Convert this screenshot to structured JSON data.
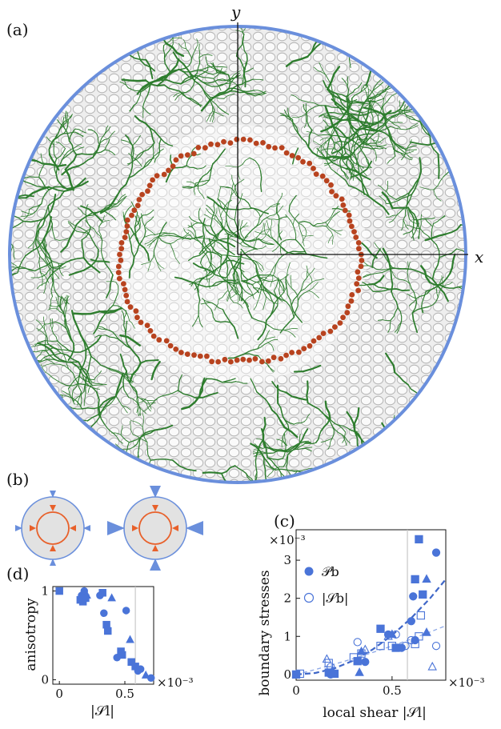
{
  "panel_labels": {
    "a": "(a)",
    "b": "(b)",
    "c": "(c)",
    "d": "(d)"
  },
  "panel_a": {
    "x_axis_label": "x",
    "y_axis_label": "y",
    "colors": {
      "boundary": "#6a8fdc",
      "network": "#2e7d2e",
      "cells": "#c8c8c8",
      "particles": "#b8431f"
    }
  },
  "panel_b": {
    "colors": {
      "outer_circle": "#6a8fdc",
      "inner_circle": "#e8602a",
      "fill": "#e2e2e2"
    }
  },
  "chart_data": [
    {
      "panel": "(c)",
      "type": "scatter",
      "xlabel": "local shear |𝒮l|",
      "ylabel": "boundary stresses",
      "x_multiplier": "×10⁻³",
      "y_multiplier": "×10⁻³",
      "x_ticks": [
        "0",
        "0.5"
      ],
      "y_ticks": [
        "0",
        "1",
        "2",
        "3"
      ],
      "xlim": [
        0,
        0.78
      ],
      "ylim": [
        -0.15,
        3.8
      ],
      "vline_x": 0.58,
      "legend_position": "top-left",
      "color": "#4a74d8",
      "legend": [
        {
          "label": "𝒫b",
          "marker": "filled-circle"
        },
        {
          "label": "|𝒮b|",
          "marker": "open-circle"
        }
      ],
      "series": [
        {
          "name": "𝒫b",
          "fill": "filled",
          "points": [
            {
              "x": 0.0,
              "y": 0.0,
              "m": "square"
            },
            {
              "x": 0.17,
              "y": 0.05,
              "m": "square"
            },
            {
              "x": 0.18,
              "y": 0.0,
              "m": "circle"
            },
            {
              "x": 0.19,
              "y": 0.08,
              "m": "triangle"
            },
            {
              "x": 0.2,
              "y": 0.02,
              "m": "square"
            },
            {
              "x": 0.32,
              "y": 0.35,
              "m": "square"
            },
            {
              "x": 0.33,
              "y": 0.05,
              "m": "triangle"
            },
            {
              "x": 0.34,
              "y": 0.6,
              "m": "triangle"
            },
            {
              "x": 0.36,
              "y": 0.33,
              "m": "circle"
            },
            {
              "x": 0.44,
              "y": 1.2,
              "m": "square"
            },
            {
              "x": 0.48,
              "y": 1.05,
              "m": "circle"
            },
            {
              "x": 0.5,
              "y": 1.05,
              "m": "triangle"
            },
            {
              "x": 0.52,
              "y": 0.7,
              "m": "square"
            },
            {
              "x": 0.55,
              "y": 0.7,
              "m": "circle"
            },
            {
              "x": 0.6,
              "y": 1.4,
              "m": "circle"
            },
            {
              "x": 0.61,
              "y": 2.05,
              "m": "circle"
            },
            {
              "x": 0.62,
              "y": 2.5,
              "m": "square"
            },
            {
              "x": 0.62,
              "y": 0.9,
              "m": "circle"
            },
            {
              "x": 0.64,
              "y": 3.55,
              "m": "square"
            },
            {
              "x": 0.66,
              "y": 2.1,
              "m": "square"
            },
            {
              "x": 0.68,
              "y": 2.5,
              "m": "triangle"
            },
            {
              "x": 0.68,
              "y": 1.1,
              "m": "triangle"
            },
            {
              "x": 0.73,
              "y": 3.2,
              "m": "circle"
            }
          ]
        },
        {
          "name": "|𝒮b|",
          "fill": "open",
          "points": [
            {
              "x": 0.02,
              "y": 0.02,
              "m": "square"
            },
            {
              "x": 0.16,
              "y": 0.4,
              "m": "triangle"
            },
            {
              "x": 0.17,
              "y": 0.3,
              "m": "square"
            },
            {
              "x": 0.18,
              "y": 0.2,
              "m": "circle"
            },
            {
              "x": 0.19,
              "y": 0.1,
              "m": "triangle"
            },
            {
              "x": 0.3,
              "y": 0.45,
              "m": "square"
            },
            {
              "x": 0.32,
              "y": 0.85,
              "m": "circle"
            },
            {
              "x": 0.34,
              "y": 0.55,
              "m": "square"
            },
            {
              "x": 0.36,
              "y": 0.65,
              "m": "triangle"
            },
            {
              "x": 0.44,
              "y": 0.75,
              "m": "square"
            },
            {
              "x": 0.48,
              "y": 1.0,
              "m": "triangle"
            },
            {
              "x": 0.5,
              "y": 0.75,
              "m": "square"
            },
            {
              "x": 0.52,
              "y": 1.05,
              "m": "circle"
            },
            {
              "x": 0.57,
              "y": 0.75,
              "m": "circle"
            },
            {
              "x": 0.6,
              "y": 0.9,
              "m": "circle"
            },
            {
              "x": 0.62,
              "y": 0.8,
              "m": "square"
            },
            {
              "x": 0.64,
              "y": 1.0,
              "m": "square"
            },
            {
              "x": 0.65,
              "y": 1.55,
              "m": "square"
            },
            {
              "x": 0.71,
              "y": 0.2,
              "m": "triangle"
            },
            {
              "x": 0.73,
              "y": 0.75,
              "m": "circle"
            }
          ]
        }
      ],
      "fits": [
        {
          "series": "𝒫b",
          "style": "dashed-thick",
          "x": [
            0,
            0.1,
            0.2,
            0.3,
            0.4,
            0.5,
            0.6,
            0.7,
            0.78
          ],
          "y": [
            0.0,
            0.04,
            0.16,
            0.37,
            0.66,
            1.03,
            1.48,
            2.01,
            2.5
          ]
        },
        {
          "series": "|𝒮b|",
          "style": "dashed-thin",
          "x": [
            0,
            0.1,
            0.2,
            0.3,
            0.4,
            0.5,
            0.6,
            0.7,
            0.78
          ],
          "y": [
            0.0,
            0.13,
            0.27,
            0.42,
            0.58,
            0.75,
            0.93,
            1.12,
            1.28
          ]
        }
      ]
    },
    {
      "panel": "(d)",
      "type": "scatter",
      "xlabel": "|𝒮l|",
      "ylabel": "anisotropy",
      "x_multiplier": "×10⁻³",
      "x_ticks": [
        "0",
        "0.5"
      ],
      "y_ticks": [
        "0",
        "1"
      ],
      "xlim": [
        -0.05,
        0.72
      ],
      "ylim": [
        -0.05,
        1.05
      ],
      "vline_x": 0.58,
      "color": "#4a74d8",
      "points": [
        {
          "x": 0.0,
          "y": 1.0,
          "m": "square"
        },
        {
          "x": 0.16,
          "y": 0.9,
          "m": "square"
        },
        {
          "x": 0.17,
          "y": 0.95,
          "m": "circle"
        },
        {
          "x": 0.18,
          "y": 0.88,
          "m": "square"
        },
        {
          "x": 0.18,
          "y": 0.97,
          "m": "triangle"
        },
        {
          "x": 0.19,
          "y": 1.0,
          "m": "circle"
        },
        {
          "x": 0.2,
          "y": 0.92,
          "m": "square"
        },
        {
          "x": 0.21,
          "y": 0.95,
          "m": "triangle"
        },
        {
          "x": 0.31,
          "y": 0.95,
          "m": "circle"
        },
        {
          "x": 0.33,
          "y": 0.98,
          "m": "square"
        },
        {
          "x": 0.34,
          "y": 0.75,
          "m": "circle"
        },
        {
          "x": 0.36,
          "y": 0.62,
          "m": "square"
        },
        {
          "x": 0.37,
          "y": 0.55,
          "m": "square"
        },
        {
          "x": 0.4,
          "y": 0.92,
          "m": "triangle"
        },
        {
          "x": 0.44,
          "y": 0.25,
          "m": "circle"
        },
        {
          "x": 0.47,
          "y": 0.32,
          "m": "square"
        },
        {
          "x": 0.48,
          "y": 0.28,
          "m": "square"
        },
        {
          "x": 0.51,
          "y": 0.78,
          "m": "circle"
        },
        {
          "x": 0.54,
          "y": 0.45,
          "m": "triangle"
        },
        {
          "x": 0.55,
          "y": 0.2,
          "m": "square"
        },
        {
          "x": 0.58,
          "y": 0.15,
          "m": "square"
        },
        {
          "x": 0.6,
          "y": 0.1,
          "m": "circle"
        },
        {
          "x": 0.62,
          "y": 0.12,
          "m": "circle"
        },
        {
          "x": 0.66,
          "y": 0.05,
          "m": "triangle"
        },
        {
          "x": 0.7,
          "y": 0.02,
          "m": "circle"
        }
      ]
    }
  ]
}
